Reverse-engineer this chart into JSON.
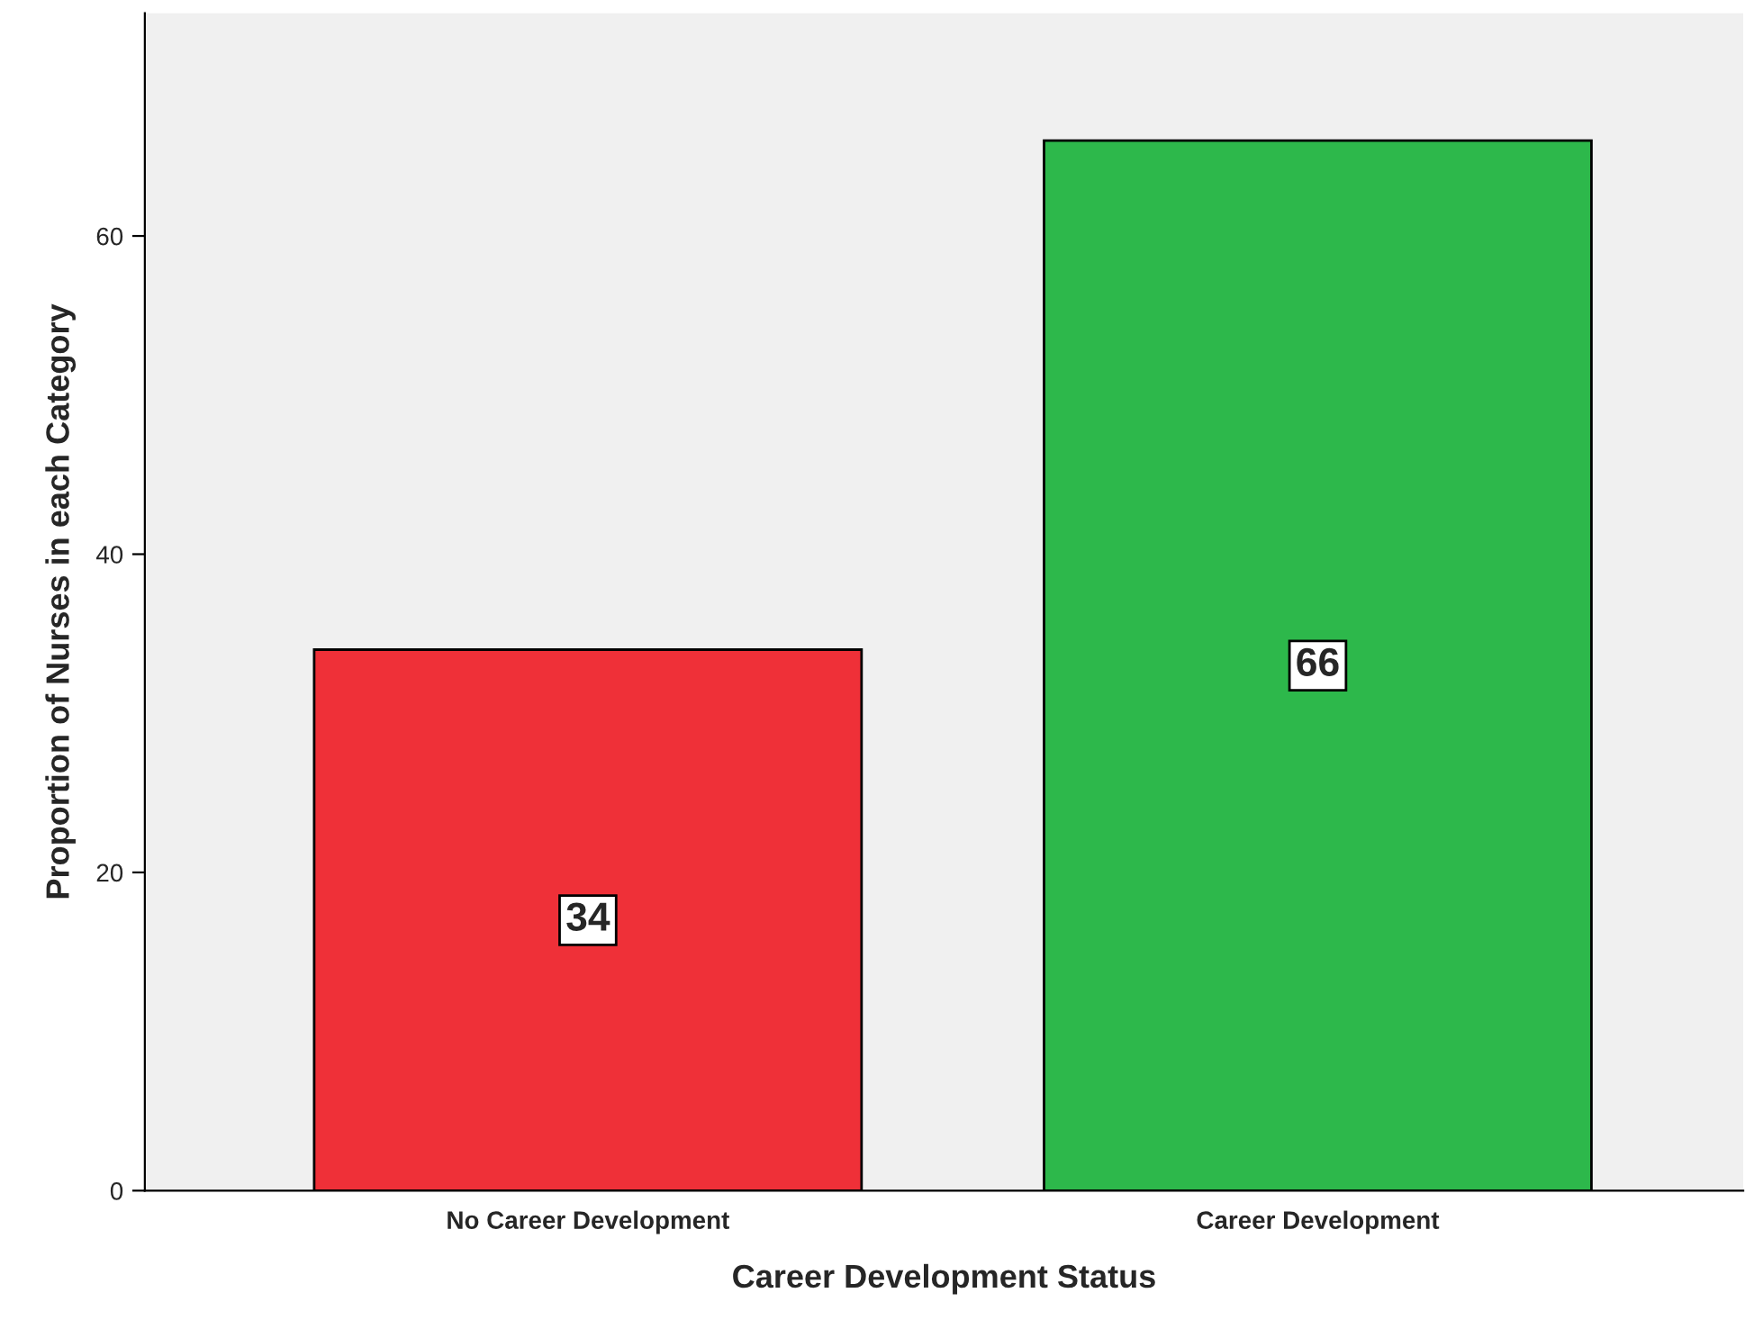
{
  "chart_data": {
    "type": "bar",
    "xlabel": "Career Development Status",
    "ylabel": "Proportion of Nurses in each Category",
    "categories": [
      "No Career Development",
      "Career Development"
    ],
    "values": [
      34,
      66
    ],
    "colors": [
      "#ef3038",
      "#2db84b"
    ],
    "ylim": [
      0,
      74
    ],
    "yticks": [
      0,
      20,
      40,
      60
    ],
    "grid": false,
    "data_labels": true
  }
}
